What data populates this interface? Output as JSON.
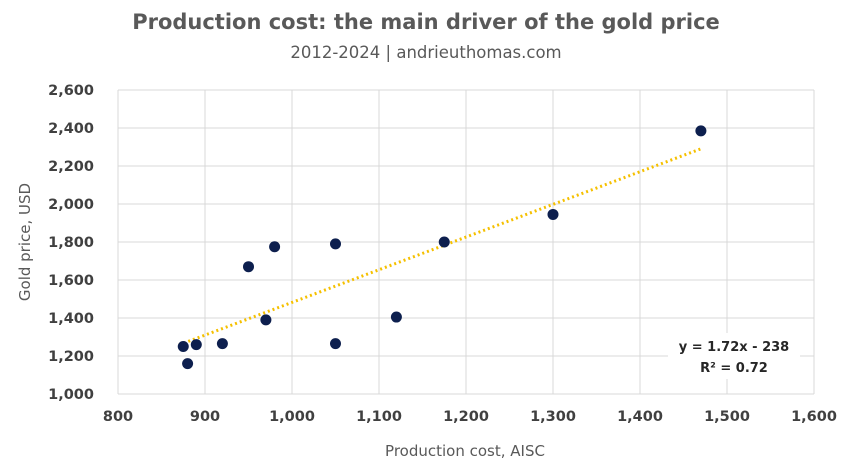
{
  "chart_data": {
    "type": "scatter",
    "title": "Production cost: the main driver of the gold price",
    "subtitle": "2012-2024 | andrieuthomas.com",
    "xlabel": "Production cost, AISC",
    "ylabel": "Gold price, USD",
    "xlim": [
      800,
      1600
    ],
    "ylim": [
      1000,
      2600
    ],
    "x_ticks": [
      "800",
      "900",
      "1,000",
      "1,100",
      "1,200",
      "1,300",
      "1,400",
      "1,500",
      "1,600"
    ],
    "y_ticks": [
      "1,000",
      "1,200",
      "1,400",
      "1,600",
      "1,800",
      "2,000",
      "2,200",
      "2,400",
      "2,600"
    ],
    "grid": true,
    "series": [
      {
        "color": "#0d1f4e",
        "points": [
          {
            "x": 875,
            "y": 1250
          },
          {
            "x": 880,
            "y": 1160
          },
          {
            "x": 890,
            "y": 1260
          },
          {
            "x": 920,
            "y": 1265
          },
          {
            "x": 950,
            "y": 1670
          },
          {
            "x": 970,
            "y": 1390
          },
          {
            "x": 980,
            "y": 1775
          },
          {
            "x": 1050,
            "y": 1790
          },
          {
            "x": 1050,
            "y": 1265
          },
          {
            "x": 1120,
            "y": 1405
          },
          {
            "x": 1175,
            "y": 1800
          },
          {
            "x": 1300,
            "y": 1945
          },
          {
            "x": 1470,
            "y": 2385
          }
        ]
      }
    ],
    "trendline": {
      "type": "linear",
      "slope": 1.72,
      "intercept": -238,
      "x_range": [
        870,
        1470
      ],
      "color": "#f5c000",
      "style": "dotted",
      "equation_label": "y = 1.72x - 238",
      "r2_label": "R² = 0.72"
    }
  }
}
